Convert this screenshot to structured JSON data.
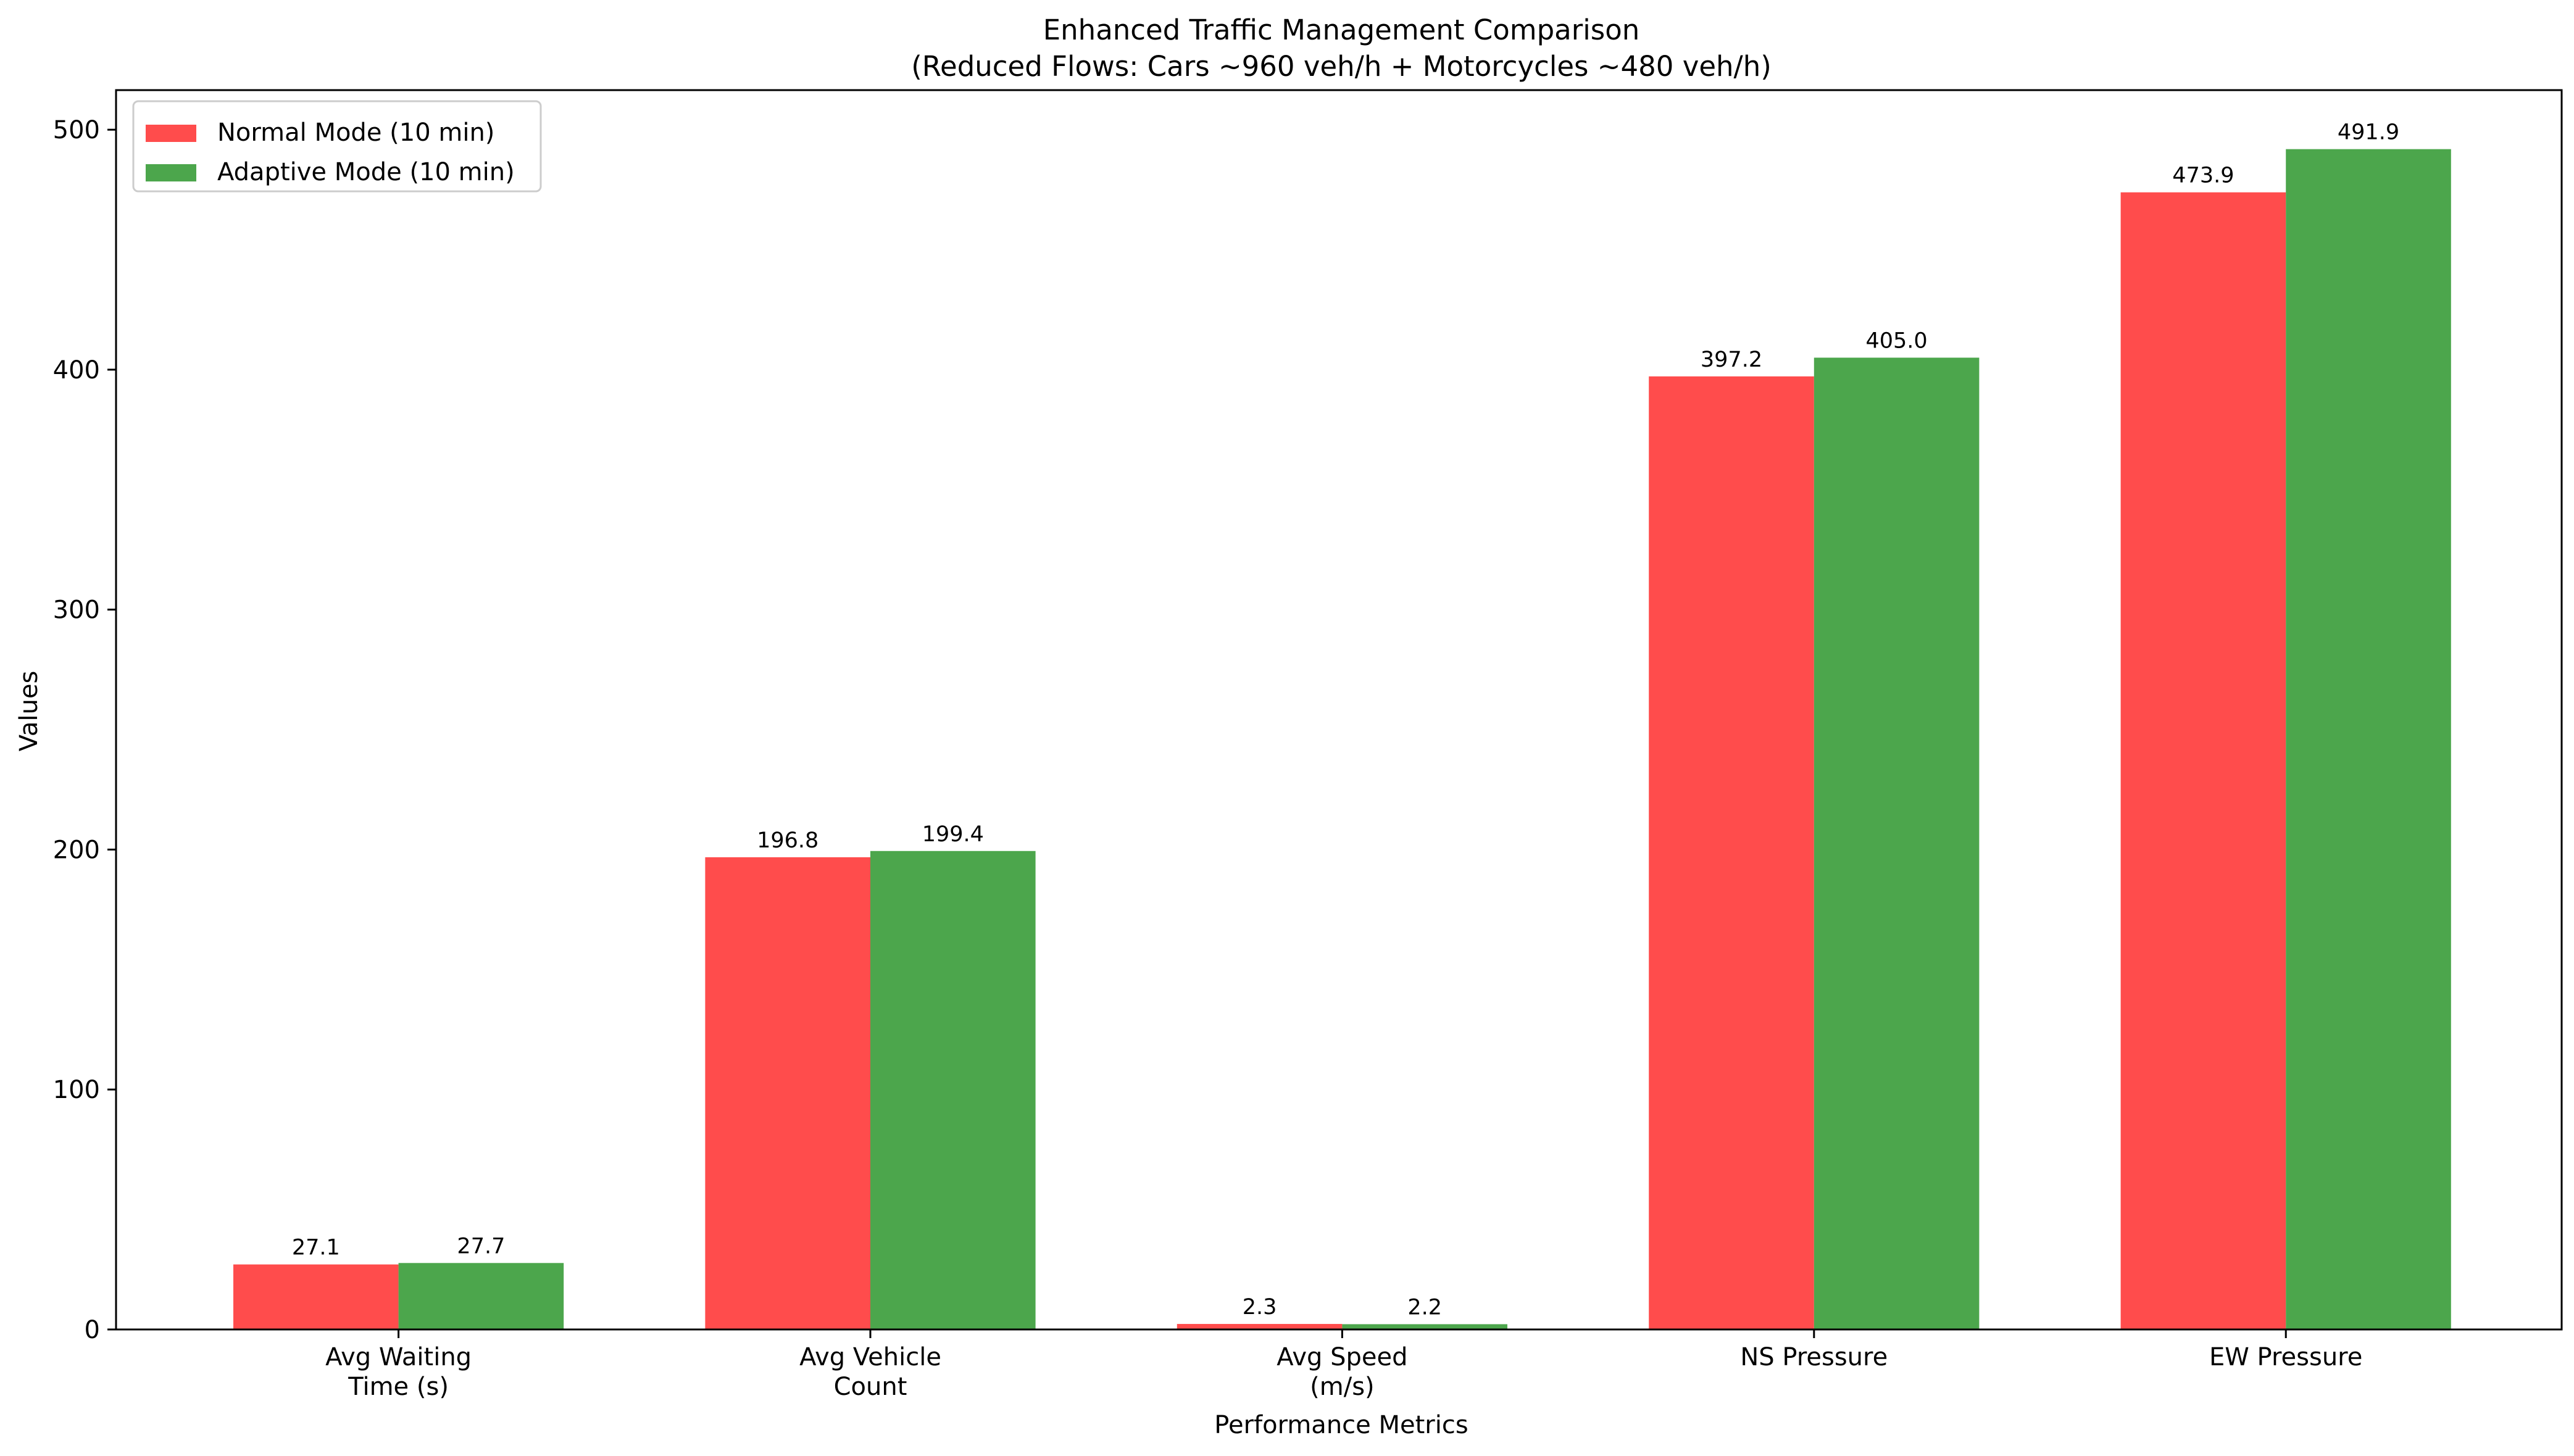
{
  "chart_data": {
    "type": "bar",
    "title": "Enhanced Traffic Management Comparison",
    "subtitle": "(Reduced Flows: Cars ~960 veh/h + Motorcycles ~480 veh/h)",
    "xlabel": "Performance Metrics",
    "ylabel": "Values",
    "categories": [
      [
        "Avg Waiting",
        "Time (s)"
      ],
      [
        "Avg Vehicle",
        "Count"
      ],
      [
        "Avg Speed",
        "(m/s)"
      ],
      [
        "NS Pressure"
      ],
      [
        "EW Pressure"
      ]
    ],
    "series": [
      {
        "name": "Normal Mode (10 min)",
        "color": "#ff4c4c",
        "values": [
          27.1,
          196.8,
          2.3,
          397.2,
          473.9
        ],
        "labels": [
          "27.1",
          "196.8",
          "2.3",
          "397.2",
          "473.9"
        ]
      },
      {
        "name": "Adaptive Mode (10 min)",
        "color": "#4ca64c",
        "values": [
          27.7,
          199.4,
          2.2,
          405.0,
          491.9
        ],
        "labels": [
          "27.7",
          "199.4",
          "2.2",
          "405.0",
          "491.9"
        ]
      }
    ],
    "ylim": [
      0,
      516.5
    ],
    "yticks": [
      0,
      100,
      200,
      300,
      400,
      500
    ],
    "grid": false,
    "legend": "top-left"
  }
}
